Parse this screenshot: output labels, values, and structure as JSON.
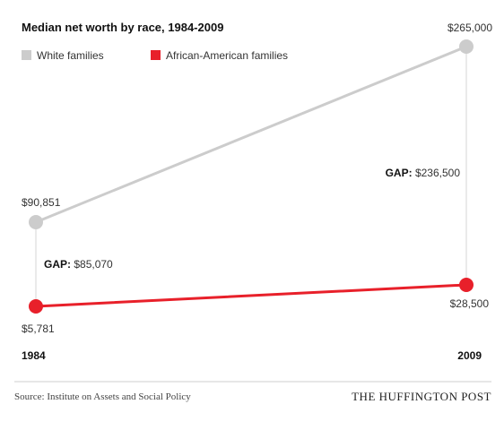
{
  "chart_data": {
    "type": "line",
    "title": "Median net worth by race, 1984-2009",
    "x": [
      "1984",
      "2009"
    ],
    "series": [
      {
        "name": "White families",
        "color": "#cccccc",
        "values": [
          90851,
          265000
        ],
        "labels": [
          "$90,851",
          "$265,000"
        ]
      },
      {
        "name": "African-American families",
        "color": "#e8202a",
        "values": [
          5781,
          28500
        ],
        "labels": [
          "$5,781",
          "$28,500"
        ]
      }
    ],
    "gaps": [
      {
        "keyword": "GAP:",
        "value": "$85,070"
      },
      {
        "keyword": "GAP:",
        "value": "$236,500"
      }
    ],
    "legend_position": "top-left",
    "grid": false
  },
  "footer": {
    "source": "Source: Institute on Assets and Social Policy",
    "brand": "THE HUFFINGTON POST"
  }
}
